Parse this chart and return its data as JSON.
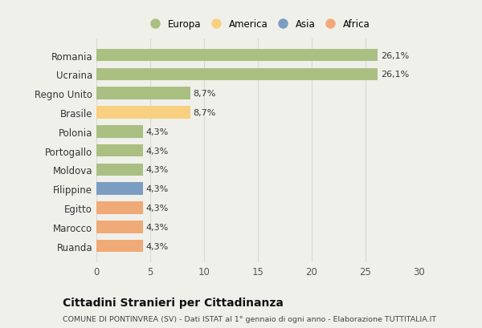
{
  "categories": [
    "Ruanda",
    "Marocco",
    "Egitto",
    "Filippine",
    "Moldova",
    "Portogallo",
    "Polonia",
    "Brasile",
    "Regno Unito",
    "Ucraina",
    "Romania"
  ],
  "values": [
    4.3,
    4.3,
    4.3,
    4.3,
    4.3,
    4.3,
    4.3,
    8.7,
    8.7,
    26.1,
    26.1
  ],
  "labels": [
    "4,3%",
    "4,3%",
    "4,3%",
    "4,3%",
    "4,3%",
    "4,3%",
    "4,3%",
    "8,7%",
    "8,7%",
    "26,1%",
    "26,1%"
  ],
  "colors": [
    "#F0AA78",
    "#F0AA78",
    "#F0AA78",
    "#7B9DC2",
    "#AABF82",
    "#AABF82",
    "#AABF82",
    "#F8D080",
    "#AABF82",
    "#AABF82",
    "#AABF82"
  ],
  "legend": [
    {
      "label": "Europa",
      "color": "#AABF82"
    },
    {
      "label": "America",
      "color": "#F8D080"
    },
    {
      "label": "Asia",
      "color": "#7B9DC2"
    },
    {
      "label": "Africa",
      "color": "#F0AA78"
    }
  ],
  "xlim": [
    0,
    30
  ],
  "xticks": [
    0,
    5,
    10,
    15,
    20,
    25,
    30
  ],
  "title": "Cittadini Stranieri per Cittadinanza",
  "subtitle": "COMUNE DI PONTINVREA (SV) - Dati ISTAT al 1° gennaio di ogni anno - Elaborazione TUTTITALIA.IT",
  "background_color": "#f0f0eb",
  "bar_background": "#f0f0eb",
  "grid_color": "#d8d8d8"
}
